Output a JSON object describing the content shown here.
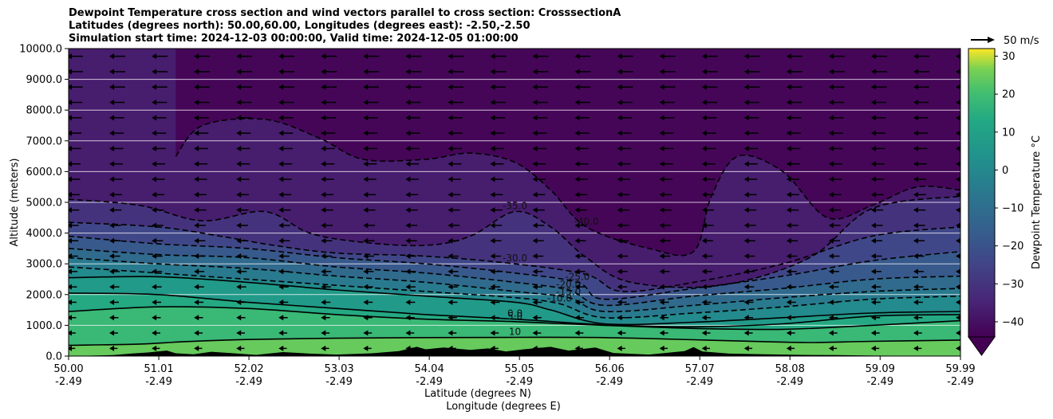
{
  "chart_data": {
    "type": "contour",
    "title": [
      "Dewpoint Temperature cross section and wind vectors parallel to cross section: CrosssectionA",
      "Latitudes (degrees north): 50.00,60.00, Longitudes (degrees east): -2.50,-2.50",
      "Simulation start time: 2024-12-03 00:00:00, Valid time: 2024-12-05 01:00:00"
    ],
    "xlabel": "Latitude (degrees N)",
    "xlabel2": "Longitude (degrees E)",
    "ylabel": "Altitude (meters)",
    "xlim": [
      50.0,
      59.99
    ],
    "ylim": [
      0,
      10000
    ],
    "x_ticks": [
      {
        "lat": "50.00",
        "lon": "-2.49",
        "value": 50.0
      },
      {
        "lat": "51.01",
        "lon": "-2.49",
        "value": 51.01
      },
      {
        "lat": "52.02",
        "lon": "-2.49",
        "value": 52.02
      },
      {
        "lat": "53.03",
        "lon": "-2.49",
        "value": 53.03
      },
      {
        "lat": "54.04",
        "lon": "-2.49",
        "value": 54.04
      },
      {
        "lat": "55.05",
        "lon": "-2.49",
        "value": 55.05
      },
      {
        "lat": "56.06",
        "lon": "-2.49",
        "value": 56.06
      },
      {
        "lat": "57.07",
        "lon": "-2.49",
        "value": 57.07
      },
      {
        "lat": "58.08",
        "lon": "-2.49",
        "value": 58.08
      },
      {
        "lat": "59.09",
        "lon": "-2.49",
        "value": 59.09
      },
      {
        "lat": "59.99",
        "lon": "-2.49",
        "value": 59.99
      }
    ],
    "y_ticks": [
      {
        "label": "0.0",
        "value": 0
      },
      {
        "label": "1000.0",
        "value": 1000
      },
      {
        "label": "2000.0",
        "value": 2000
      },
      {
        "label": "3000.0",
        "value": 3000
      },
      {
        "label": "4000.0",
        "value": 4000
      },
      {
        "label": "5000.0",
        "value": 5000
      },
      {
        "label": "6000.0",
        "value": 6000
      },
      {
        "label": "7000.0",
        "value": 7000
      },
      {
        "label": "8000.0",
        "value": 8000
      },
      {
        "label": "9000.0",
        "value": 9000
      },
      {
        "label": "10000.0",
        "value": 10000
      }
    ],
    "grid": "horizontal",
    "colorbar": {
      "label": "Dewpoint Temperature °C",
      "range": [
        -44,
        32
      ],
      "ticks": [
        {
          "label": "30",
          "value": 30
        },
        {
          "label": "20",
          "value": 20
        },
        {
          "label": "10",
          "value": 10
        },
        {
          "label": "0",
          "value": 0
        },
        {
          "label": "−10",
          "value": -10
        },
        {
          "label": "−20",
          "value": -20
        },
        {
          "label": "−30",
          "value": -30
        },
        {
          "label": "−40",
          "value": -40
        }
      ],
      "colormap": "viridis",
      "extend": "min",
      "placement": "right"
    },
    "quiver_key": {
      "label": "50 m/s",
      "placement": "top-right"
    },
    "wind_direction": "southward",
    "contour_lines": [
      {
        "level": 10,
        "style": "solid",
        "label": "10",
        "points": [
          [
            50.0,
            350
          ],
          [
            50.8,
            390
          ],
          [
            51.3,
            470
          ],
          [
            52.0,
            540
          ],
          [
            53.0,
            580
          ],
          [
            54.0,
            600
          ],
          [
            55.0,
            610
          ],
          [
            56.0,
            600
          ],
          [
            57.0,
            530
          ],
          [
            57.8,
            470
          ],
          [
            58.3,
            440
          ],
          [
            59.0,
            480
          ],
          [
            59.99,
            520
          ]
        ]
      },
      {
        "level": 5,
        "style": "solid",
        "label": "5.0",
        "points": [
          [
            50.0,
            1450
          ],
          [
            51.0,
            1600
          ],
          [
            52.0,
            1550
          ],
          [
            53.0,
            1350
          ],
          [
            54.0,
            1200
          ],
          [
            55.0,
            1120
          ],
          [
            56.0,
            1000
          ],
          [
            57.0,
            900
          ],
          [
            58.0,
            870
          ],
          [
            59.0,
            1000
          ],
          [
            59.99,
            1150
          ]
        ]
      },
      {
        "level": 0,
        "style": "solid",
        "label": "0.0",
        "points": [
          [
            50.0,
            2050
          ],
          [
            51.0,
            2000
          ],
          [
            52.0,
            1750
          ],
          [
            53.0,
            1550
          ],
          [
            54.0,
            1350
          ],
          [
            55.0,
            1200
          ],
          [
            56.0,
            1020
          ],
          [
            57.0,
            950
          ],
          [
            58.0,
            1050
          ],
          [
            59.0,
            1300
          ],
          [
            59.99,
            1350
          ]
        ]
      },
      {
        "level": -5,
        "style": "solid",
        "label": "",
        "points": [
          [
            50.0,
            2550
          ],
          [
            51.0,
            2580
          ],
          [
            52.0,
            2400
          ],
          [
            53.0,
            2150
          ],
          [
            54.0,
            1950
          ],
          [
            55.0,
            1750
          ],
          [
            55.4,
            1500
          ],
          [
            56.0,
            1050
          ],
          [
            57.0,
            1100
          ],
          [
            58.0,
            1250
          ],
          [
            59.0,
            1400
          ],
          [
            59.99,
            1450
          ]
        ]
      },
      {
        "level": -10,
        "style": "dashed",
        "label": "-10.0",
        "points": [
          [
            50.0,
            2900
          ],
          [
            51.0,
            2700
          ],
          [
            52.0,
            2500
          ],
          [
            53.0,
            2300
          ],
          [
            54.0,
            2100
          ],
          [
            55.0,
            1900
          ],
          [
            55.5,
            1700
          ],
          [
            56.0,
            1250
          ],
          [
            57.0,
            1400
          ],
          [
            58.0,
            1600
          ],
          [
            59.0,
            1850
          ],
          [
            59.99,
            1950
          ]
        ]
      },
      {
        "level": -15,
        "style": "dashed",
        "label": "-15.0",
        "points": [
          [
            50.0,
            3200
          ],
          [
            51.0,
            3000
          ],
          [
            52.0,
            2850
          ],
          [
            53.0,
            2600
          ],
          [
            54.0,
            2400
          ],
          [
            55.0,
            2100
          ],
          [
            55.6,
            1900
          ],
          [
            56.0,
            1450
          ],
          [
            57.0,
            1650
          ],
          [
            58.0,
            1900
          ],
          [
            59.0,
            2100
          ],
          [
            59.99,
            2200
          ]
        ]
      },
      {
        "level": -20,
        "style": "dashed",
        "label": "-20.0",
        "points": [
          [
            50.0,
            3500
          ],
          [
            51.0,
            3300
          ],
          [
            52.0,
            3200
          ],
          [
            53.0,
            2900
          ],
          [
            54.0,
            2700
          ],
          [
            55.0,
            2400
          ],
          [
            55.6,
            2150
          ],
          [
            56.0,
            1650
          ],
          [
            57.0,
            1950
          ],
          [
            58.0,
            2200
          ],
          [
            59.0,
            2500
          ],
          [
            59.99,
            2600
          ]
        ]
      },
      {
        "level": -25,
        "style": "dashed",
        "label": "-25.0",
        "points": [
          [
            50.0,
            3900
          ],
          [
            51.0,
            3650
          ],
          [
            52.0,
            3500
          ],
          [
            53.0,
            3200
          ],
          [
            54.0,
            3000
          ],
          [
            55.0,
            2700
          ],
          [
            55.7,
            2400
          ],
          [
            56.0,
            1850
          ],
          [
            57.0,
            2200
          ],
          [
            58.0,
            2600
          ],
          [
            59.0,
            3100
          ],
          [
            59.99,
            3400
          ]
        ]
      },
      {
        "level": -30,
        "style": "dashed",
        "label": "-30.0",
        "points": [
          [
            50.0,
            4350
          ],
          [
            51.0,
            4200
          ],
          [
            51.7,
            3900
          ],
          [
            52.3,
            3600
          ],
          [
            53.0,
            3350
          ],
          [
            54.0,
            3250
          ],
          [
            55.0,
            3000
          ],
          [
            55.8,
            2650
          ],
          [
            56.2,
            2100
          ],
          [
            57.0,
            2400
          ],
          [
            58.0,
            3000
          ],
          [
            59.0,
            3900
          ],
          [
            59.99,
            4200
          ]
        ]
      },
      {
        "level": -35,
        "style": "dashed",
        "label": "-35.0",
        "points": [
          [
            50.0,
            5100
          ],
          [
            50.8,
            4900
          ],
          [
            51.5,
            4400
          ],
          [
            52.2,
            4700
          ],
          [
            52.7,
            4000
          ],
          [
            53.3,
            3700
          ],
          [
            54.0,
            3600
          ],
          [
            54.5,
            3900
          ],
          [
            55.0,
            4700
          ],
          [
            55.4,
            4200
          ],
          [
            55.8,
            3200
          ],
          [
            56.3,
            2400
          ],
          [
            57.3,
            2300
          ],
          [
            58.3,
            3200
          ],
          [
            59.0,
            4800
          ],
          [
            59.99,
            5200
          ]
        ]
      },
      {
        "level": -40,
        "style": "dashed",
        "label": "-40.0",
        "points": [
          [
            51.2,
            6500
          ],
          [
            51.5,
            7500
          ],
          [
            52.2,
            7700
          ],
          [
            52.8,
            7100
          ],
          [
            53.3,
            6400
          ],
          [
            54.0,
            6400
          ],
          [
            54.5,
            6600
          ],
          [
            55.0,
            6300
          ],
          [
            55.4,
            5400
          ],
          [
            55.8,
            4200
          ],
          [
            56.5,
            3500
          ],
          [
            57.0,
            3400
          ],
          [
            57.2,
            5200
          ],
          [
            57.5,
            6500
          ],
          [
            58.0,
            6000
          ],
          [
            58.5,
            4500
          ],
          [
            59.0,
            4900
          ],
          [
            59.5,
            5500
          ],
          [
            59.99,
            5400
          ]
        ]
      }
    ],
    "terrain": [
      [
        50.0,
        0
      ],
      [
        50.5,
        30
      ],
      [
        50.7,
        80
      ],
      [
        50.9,
        120
      ],
      [
        51.1,
        180
      ],
      [
        51.2,
        90
      ],
      [
        51.4,
        60
      ],
      [
        51.6,
        140
      ],
      [
        51.8,
        100
      ],
      [
        52.1,
        40
      ],
      [
        52.4,
        130
      ],
      [
        52.7,
        80
      ],
      [
        53.0,
        50
      ],
      [
        53.4,
        90
      ],
      [
        53.7,
        160
      ],
      [
        53.9,
        300
      ],
      [
        54.0,
        220
      ],
      [
        54.2,
        280
      ],
      [
        54.5,
        200
      ],
      [
        54.7,
        250
      ],
      [
        54.9,
        150
      ],
      [
        55.1,
        220
      ],
      [
        55.4,
        300
      ],
      [
        55.6,
        180
      ],
      [
        55.9,
        280
      ],
      [
        56.1,
        100
      ],
      [
        56.5,
        50
      ],
      [
        56.9,
        160
      ],
      [
        57.0,
        290
      ],
      [
        57.1,
        150
      ],
      [
        57.4,
        80
      ],
      [
        57.8,
        60
      ],
      [
        58.2,
        40
      ],
      [
        58.6,
        30
      ],
      [
        59.0,
        15
      ],
      [
        59.99,
        0
      ]
    ]
  }
}
